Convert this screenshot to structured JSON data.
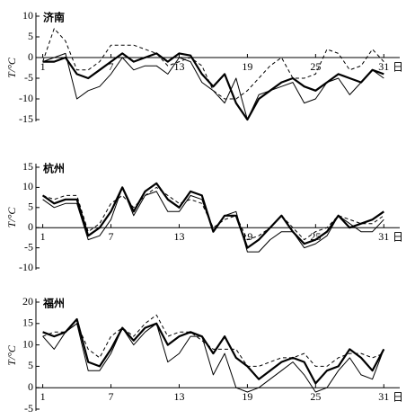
{
  "chart_data": [
    {
      "type": "line",
      "title": "济南",
      "ylabel": "T/°C",
      "xlabel": "日",
      "x": [
        1,
        2,
        3,
        4,
        5,
        6,
        7,
        8,
        9,
        10,
        11,
        12,
        13,
        14,
        15,
        16,
        17,
        18,
        19,
        20,
        21,
        22,
        23,
        24,
        25,
        26,
        27,
        28,
        29,
        30,
        31
      ],
      "xlim": [
        0.4,
        32.4
      ],
      "xticks": [
        1,
        7,
        13,
        19,
        25,
        31
      ],
      "ylim": [
        -15,
        10
      ],
      "yticks": [
        10,
        5,
        0,
        -5,
        -10,
        -15
      ],
      "series": [
        {
          "color": "#000",
          "line_width": 2.2,
          "dash": "none",
          "values": [
            -1,
            -1,
            0,
            -4,
            -5,
            -3,
            -1,
            1,
            -1,
            0,
            1,
            -1,
            1,
            0.5,
            -4,
            -7,
            -4,
            -11,
            -15,
            -10,
            -8,
            -6,
            -5,
            -7,
            -8,
            -6,
            -4,
            -5,
            -6,
            -3,
            -4
          ]
        },
        {
          "color": "#000",
          "line_width": 1,
          "dash": "none",
          "values": [
            -1,
            0,
            1,
            -10,
            -8,
            -7,
            -4,
            0,
            -3,
            -2,
            -2,
            -4,
            0,
            -1,
            -6,
            -8,
            -11,
            -5,
            -15,
            -9,
            -8,
            -7,
            -6,
            -11,
            -10,
            -6,
            -5,
            -9,
            -6,
            -3,
            -5
          ]
        },
        {
          "color": "#000",
          "line_width": 1,
          "dash": "4 3",
          "values": [
            -1,
            7,
            4,
            -3,
            -3,
            -1,
            3,
            3,
            3,
            2,
            1,
            -2,
            -1,
            0,
            -2,
            -8,
            -10,
            -10,
            -8,
            -5,
            -2,
            0,
            -5,
            -5,
            -4,
            2,
            1,
            -3,
            -2,
            2,
            -1
          ]
        }
      ]
    },
    {
      "type": "line",
      "title": "杭州",
      "ylabel": "T/°C",
      "xlabel": "日",
      "x": [
        1,
        2,
        3,
        4,
        5,
        6,
        7,
        8,
        9,
        10,
        11,
        12,
        13,
        14,
        15,
        16,
        17,
        18,
        19,
        20,
        21,
        22,
        23,
        24,
        25,
        26,
        27,
        28,
        29,
        30,
        31
      ],
      "xlim": [
        0.4,
        32.4
      ],
      "xticks": [
        1,
        7,
        13,
        19,
        25,
        31
      ],
      "ylim": [
        -10,
        15
      ],
      "yticks": [
        15,
        10,
        5,
        0,
        -5,
        -10
      ],
      "series": [
        {
          "color": "#000",
          "line_width": 2.2,
          "dash": "none",
          "values": [
            8,
            6,
            7,
            7,
            -2,
            0,
            4,
            10,
            4,
            9,
            11,
            7,
            5,
            9,
            8,
            -1,
            3,
            3,
            -5,
            -3,
            0,
            3,
            -1,
            -4,
            -3,
            -1,
            3,
            0,
            1,
            2,
            4
          ]
        },
        {
          "color": "#000",
          "line_width": 1,
          "dash": "none",
          "values": [
            7,
            5,
            6,
            6,
            -3,
            -2,
            2,
            10,
            3,
            8,
            9,
            4,
            4,
            8,
            7,
            -1,
            3,
            4,
            -6,
            -6,
            -3,
            -1,
            -1,
            -5,
            -4,
            -2,
            3,
            1,
            -1,
            -1,
            2
          ]
        },
        {
          "color": "#000",
          "line_width": 1,
          "dash": "4 3",
          "values": [
            8,
            7,
            8,
            8,
            -1,
            1,
            6,
            8,
            5,
            8,
            10,
            8,
            6,
            7,
            6,
            0,
            2,
            3,
            -3,
            -2,
            0,
            3,
            0,
            -3,
            -1,
            0,
            3,
            2,
            1,
            1,
            3
          ]
        }
      ]
    },
    {
      "type": "line",
      "title": "福州",
      "ylabel": "T/°C",
      "xlabel": "日",
      "x": [
        1,
        2,
        3,
        4,
        5,
        6,
        7,
        8,
        9,
        10,
        11,
        12,
        13,
        14,
        15,
        16,
        17,
        18,
        19,
        20,
        21,
        22,
        23,
        24,
        25,
        26,
        27,
        28,
        29,
        30,
        31
      ],
      "xlim": [
        0.4,
        32.4
      ],
      "xticks": [
        1,
        7,
        13,
        19,
        25,
        31
      ],
      "ylim": [
        -5,
        20
      ],
      "yticks": [
        20,
        15,
        10,
        5,
        0,
        -5
      ],
      "series": [
        {
          "color": "#000",
          "line_width": 2.2,
          "dash": "none",
          "values": [
            13,
            12,
            13,
            16,
            6,
            5,
            9,
            14,
            11,
            14,
            15,
            10,
            12,
            13,
            12,
            8,
            12,
            7,
            5,
            2,
            4,
            6,
            7,
            6,
            1,
            4,
            5,
            9,
            7,
            4,
            9
          ]
        },
        {
          "color": "#000",
          "line_width": 1,
          "dash": "none",
          "values": [
            12,
            9,
            13,
            15,
            4,
            4,
            8,
            14,
            10,
            13,
            15,
            6,
            8,
            12,
            12,
            3,
            8,
            0,
            -1,
            0,
            2,
            4,
            6,
            3,
            -1,
            0,
            4,
            7,
            3,
            2,
            9
          ]
        },
        {
          "color": "#000",
          "line_width": 1,
          "dash": "4 3",
          "values": [
            12,
            13,
            13,
            15,
            9,
            7,
            12,
            14,
            12,
            15,
            17,
            12,
            13,
            13,
            11,
            9,
            9,
            9,
            5,
            5,
            6,
            7,
            7,
            8,
            5,
            5,
            7,
            8,
            8,
            7,
            8
          ]
        }
      ]
    }
  ]
}
